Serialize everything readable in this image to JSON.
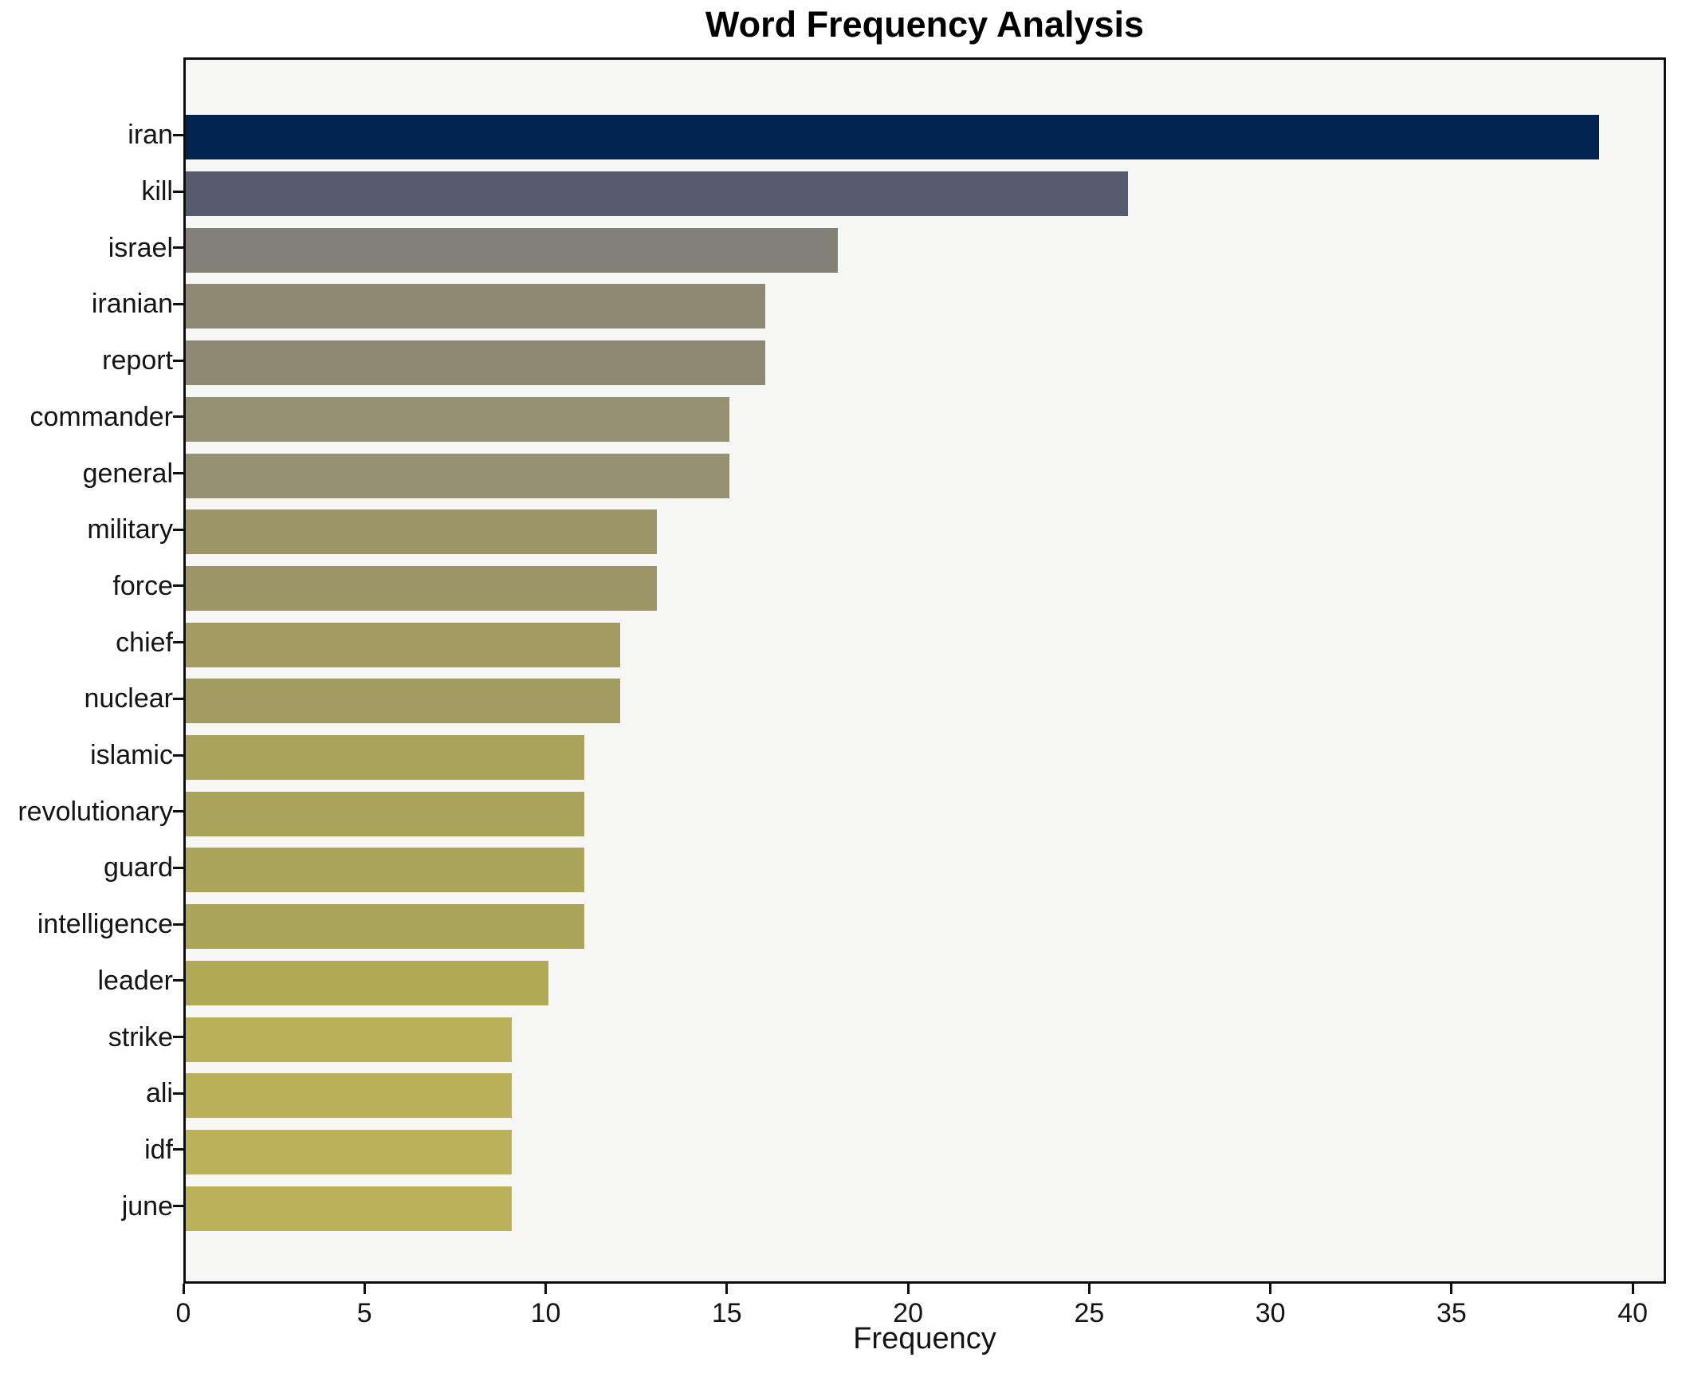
{
  "title": "Word Frequency Analysis",
  "chart_data": {
    "type": "bar",
    "orientation": "horizontal",
    "title": "Word Frequency Analysis",
    "xlabel": "Frequency",
    "ylabel": "",
    "categories": [
      "iran",
      "kill",
      "israel",
      "iranian",
      "report",
      "commander",
      "general",
      "military",
      "force",
      "chief",
      "nuclear",
      "islamic",
      "revolutionary",
      "guard",
      "intelligence",
      "leader",
      "strike",
      "ali",
      "idf",
      "june"
    ],
    "values": [
      39,
      26,
      18,
      16,
      16,
      15,
      15,
      13,
      13,
      12,
      12,
      11,
      11,
      11,
      11,
      10,
      9,
      9,
      9,
      9
    ],
    "bar_colors": [
      "#00234f",
      "#565c6e",
      "#838077",
      "#8e8972",
      "#8e8972",
      "#949071",
      "#949071",
      "#9c9568",
      "#9c9568",
      "#a39c62",
      "#a39c62",
      "#aaa35c",
      "#aaa35c",
      "#aba45b",
      "#aba45b",
      "#b1a956",
      "#bab058",
      "#bab058",
      "#bbb159",
      "#bbb159"
    ],
    "xticks": [
      0,
      5,
      10,
      15,
      20,
      25,
      30,
      35,
      40
    ],
    "xlim": [
      0,
      40.92
    ],
    "grid": false,
    "legend": null,
    "plot_background": "#f6f6f4",
    "figure_background": "#ffffff",
    "spine_color": "#0d0d0d"
  }
}
